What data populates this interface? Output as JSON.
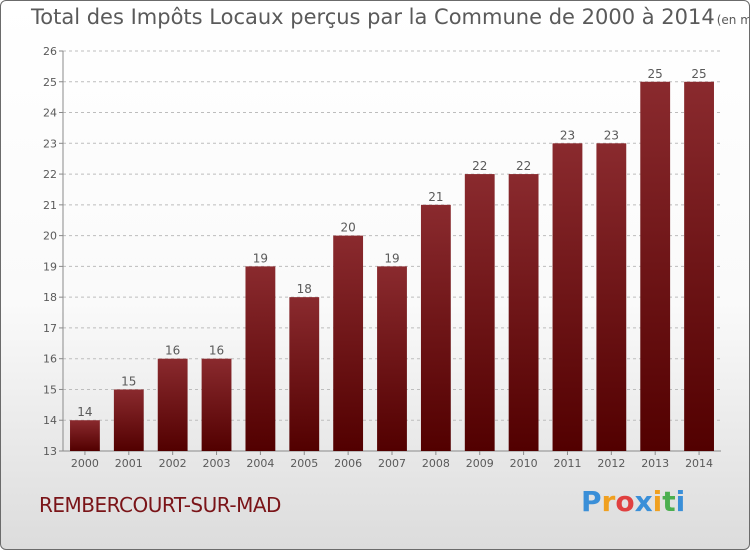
{
  "title": "Total des Impôts Locaux perçus par la Commune de 2000 à 2014",
  "title_unit": "(en milliers d'€)",
  "commune": "REMBERCOURT-SUR-MAD",
  "logo": {
    "text": "Proxiti",
    "letters": [
      "P",
      "r",
      "o",
      "x",
      "i",
      "t",
      "i"
    ],
    "colors": [
      "#3a8fd8",
      "#f0a020",
      "#e04040",
      "#3a8fd8",
      "#f0a020",
      "#4caf50",
      "#3a8fd8"
    ]
  },
  "colors": {
    "bar_top": "#8a2a2e",
    "bar_bottom": "#520000",
    "text": "#5a5a5a",
    "commune": "#7a1418"
  },
  "chart_data": {
    "type": "bar",
    "categories": [
      "2000",
      "2001",
      "2002",
      "2003",
      "2004",
      "2005",
      "2006",
      "2007",
      "2008",
      "2009",
      "2010",
      "2011",
      "2012",
      "2013",
      "2014"
    ],
    "values": [
      14,
      15,
      16,
      16,
      19,
      18,
      20,
      19,
      21,
      22,
      22,
      23,
      23,
      25,
      25
    ],
    "ylim": [
      13,
      26
    ],
    "yticks": [
      13,
      14,
      15,
      16,
      17,
      18,
      19,
      20,
      21,
      22,
      23,
      24,
      25,
      26
    ],
    "title": "Total des Impôts Locaux perçus par la Commune de 2000 à 2014",
    "xlabel": "",
    "ylabel": "",
    "grid": true
  }
}
